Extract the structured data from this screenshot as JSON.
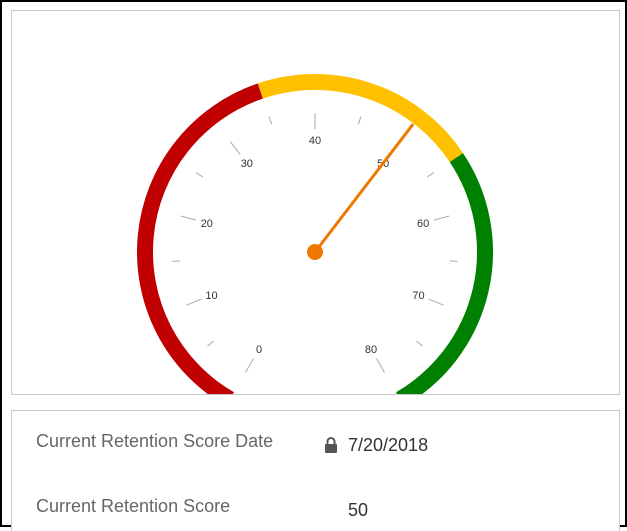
{
  "gauge": {
    "min": 0,
    "max": 80,
    "value": 50,
    "tick_labels": [
      "0",
      "10",
      "20",
      "30",
      "40",
      "50",
      "60",
      "70",
      "80"
    ],
    "bands": [
      {
        "from": 0,
        "to": 35,
        "color": "#c00000"
      },
      {
        "from": 35,
        "to": 55,
        "color": "#ffc000"
      },
      {
        "from": 55,
        "to": 80,
        "color": "#008000"
      }
    ],
    "needle_color": "#f07800"
  },
  "fields": {
    "retention_date": {
      "label": "Current Retention Score Date",
      "value": "7/20/2018",
      "icon": "lock-icon"
    },
    "retention_score": {
      "label": "Current Retention Score",
      "value": "50"
    }
  }
}
